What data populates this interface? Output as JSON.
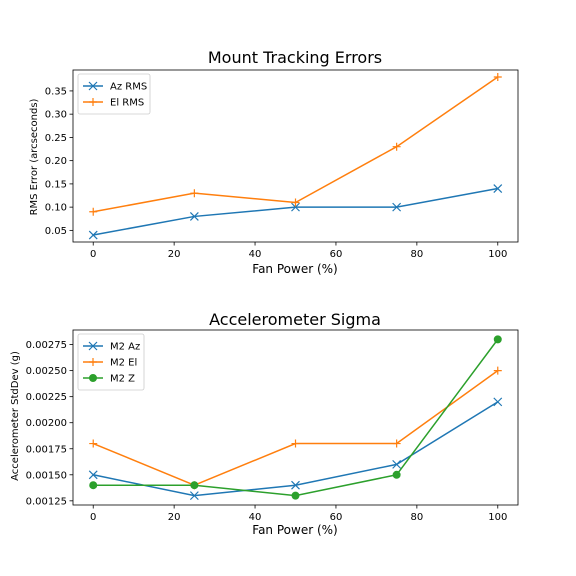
{
  "chart_data": [
    {
      "type": "line",
      "title": "Mount Tracking Errors",
      "xlabel": "Fan Power (%)",
      "ylabel": "RMS Error (arcseconds)",
      "x": [
        0,
        25,
        50,
        75,
        100
      ],
      "xlim": [
        -5,
        105
      ],
      "ylim": [
        0.025,
        0.395
      ],
      "xticks": [
        0,
        20,
        40,
        60,
        80,
        100
      ],
      "yticks": [
        0.05,
        0.1,
        0.15,
        0.2,
        0.25,
        0.3,
        0.35
      ],
      "ytick_decimals": 2,
      "grid": false,
      "legend_position": "upper-left",
      "series": [
        {
          "name": "Az RMS",
          "values": [
            0.04,
            0.08,
            0.1,
            0.1,
            0.14
          ],
          "color": "#1f77b4",
          "marker": "x"
        },
        {
          "name": "El RMS",
          "values": [
            0.09,
            0.13,
            0.11,
            0.23,
            0.38
          ],
          "color": "#ff7f0e",
          "marker": "+"
        }
      ]
    },
    {
      "type": "line",
      "title": "Accelerometer Sigma",
      "xlabel": "Fan Power (%)",
      "ylabel": "Accelerometer StdDev (g)",
      "x": [
        0,
        25,
        50,
        75,
        100
      ],
      "xlim": [
        -5,
        105
      ],
      "ylim": [
        0.00121,
        0.00289
      ],
      "xticks": [
        0,
        20,
        40,
        60,
        80,
        100
      ],
      "yticks": [
        0.00125,
        0.0015,
        0.00175,
        0.002,
        0.00225,
        0.0025,
        0.00275
      ],
      "ytick_decimals": 5,
      "grid": false,
      "legend_position": "upper-left",
      "series": [
        {
          "name": "M2 Az",
          "values": [
            0.0015,
            0.0013,
            0.0014,
            0.0016,
            0.0022
          ],
          "color": "#1f77b4",
          "marker": "x"
        },
        {
          "name": "M2 El",
          "values": [
            0.0018,
            0.0014,
            0.0018,
            0.0018,
            0.0025
          ],
          "color": "#ff7f0e",
          "marker": "+"
        },
        {
          "name": "M2 Z",
          "values": [
            0.0014,
            0.0014,
            0.0013,
            0.0015,
            0.0028
          ],
          "color": "#2ca02c",
          "marker": "o"
        }
      ]
    }
  ]
}
